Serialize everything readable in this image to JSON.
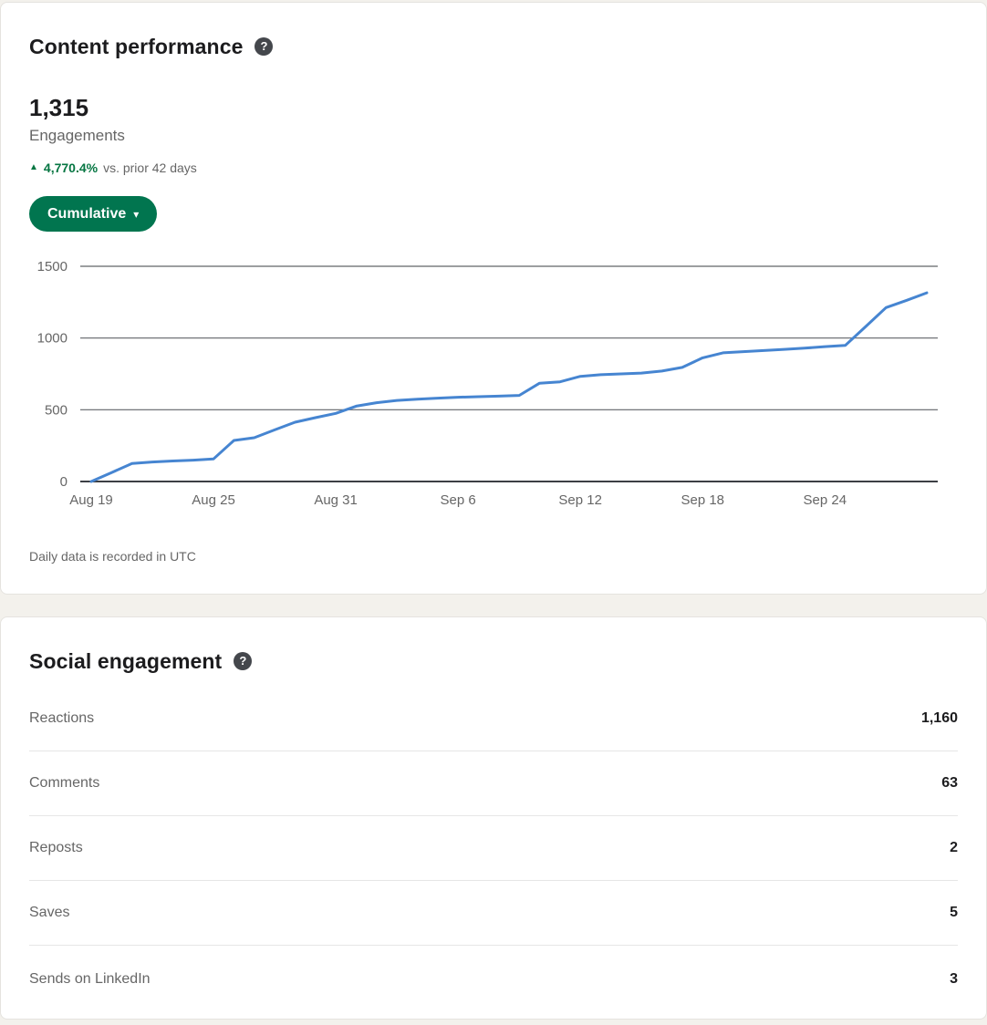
{
  "colors": {
    "page_bg": "#f3f1ec",
    "card_border": "#e5e3df",
    "text_primary": "#1c1c1e",
    "text_secondary": "#666666",
    "success_green": "#057642",
    "button_green": "#01754f",
    "line_blue": "#4685d1",
    "gridline": "#606368",
    "axis_zero": "#3c3f44",
    "divider": "#e6e6e6",
    "help_icon_bg": "#44474c"
  },
  "content_performance": {
    "title": "Content performance",
    "help_glyph": "?",
    "metric_value": "1,315",
    "metric_label": "Engagements",
    "delta_arrow": "▲",
    "delta_percent": "4,770.4%",
    "delta_suffix": "vs. prior 42 days",
    "filter_label": "Cumulative",
    "filter_caret": "▾",
    "footnote": "Daily data is recorded in UTC"
  },
  "chart_data": {
    "type": "line",
    "title": "",
    "x": [
      "Aug 19",
      "Aug 20",
      "Aug 21",
      "Aug 22",
      "Aug 23",
      "Aug 24",
      "Aug 25",
      "Aug 26",
      "Aug 27",
      "Aug 28",
      "Aug 29",
      "Aug 30",
      "Aug 31",
      "Sep 1",
      "Sep 2",
      "Sep 3",
      "Sep 4",
      "Sep 5",
      "Sep 6",
      "Sep 7",
      "Sep 8",
      "Sep 9",
      "Sep 10",
      "Sep 11",
      "Sep 12",
      "Sep 13",
      "Sep 14",
      "Sep 15",
      "Sep 16",
      "Sep 17",
      "Sep 18",
      "Sep 19",
      "Sep 20",
      "Sep 21",
      "Sep 22",
      "Sep 23",
      "Sep 24",
      "Sep 25",
      "Sep 26",
      "Sep 27",
      "Sep 28",
      "Sep 29"
    ],
    "values": [
      0,
      62,
      125,
      136,
      143,
      149,
      157,
      286,
      305,
      360,
      413,
      445,
      475,
      525,
      549,
      565,
      574,
      581,
      587,
      591,
      595,
      600,
      685,
      695,
      733,
      744,
      750,
      756,
      770,
      795,
      862,
      897,
      905,
      913,
      921,
      929,
      940,
      948,
      1080,
      1212,
      1262,
      1315
    ],
    "ylim": [
      0,
      1500
    ],
    "y_ticks": [
      0,
      500,
      1000,
      1500
    ],
    "x_tick_indices": [
      0,
      6,
      12,
      18,
      24,
      30,
      36
    ],
    "x_tick_labels": [
      "Aug 19",
      "Aug 25",
      "Aug 31",
      "Sep 6",
      "Sep 12",
      "Sep 18",
      "Sep 24"
    ],
    "grid": "horizontal",
    "legend": "none"
  },
  "social_engagement": {
    "title": "Social engagement",
    "help_glyph": "?",
    "rows": [
      {
        "label": "Reactions",
        "value": "1,160"
      },
      {
        "label": "Comments",
        "value": "63"
      },
      {
        "label": "Reposts",
        "value": "2"
      },
      {
        "label": "Saves",
        "value": "5"
      },
      {
        "label": "Sends on LinkedIn",
        "value": "3"
      }
    ]
  }
}
